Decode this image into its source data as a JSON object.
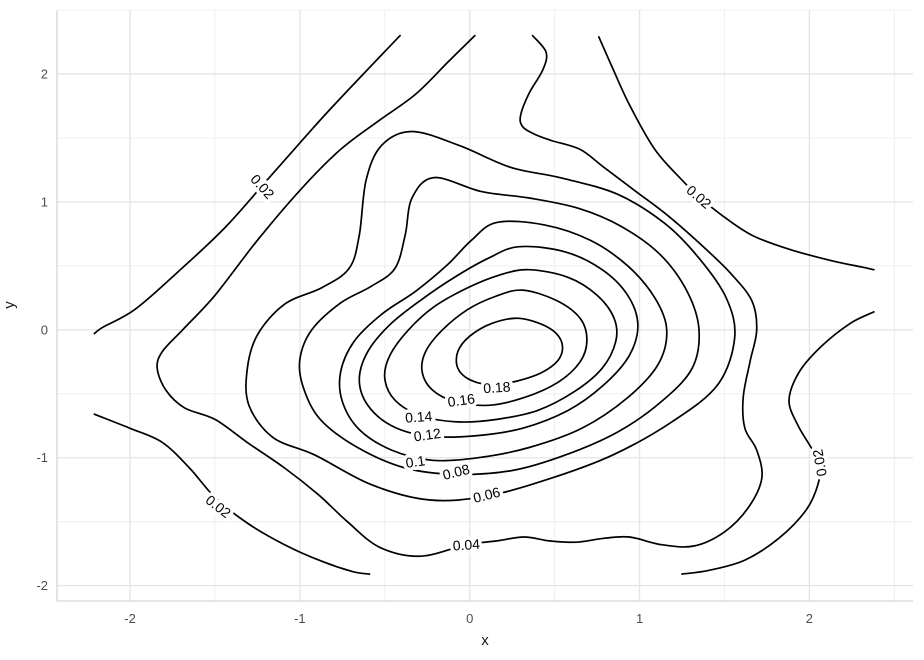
{
  "figure": {
    "background": "#ffffff"
  },
  "axes": {
    "x": {
      "title": "x",
      "tick_labels": [
        "-2",
        "-1",
        "0",
        "1",
        "2"
      ]
    },
    "y": {
      "title": "y",
      "tick_labels": [
        "-2",
        "-1",
        "0",
        "1",
        "2"
      ]
    }
  },
  "colors": {
    "contour_line": "#000000",
    "grid_major": "#e4e4e4",
    "grid_minor": "#f0f0f0",
    "axis_line": "#d6d6d6",
    "tick_label": "#4d4d4d",
    "axis_title": "#1a1a1a",
    "background": "#ffffff"
  },
  "chart_data": {
    "type": "contour",
    "title": "",
    "xlabel": "x",
    "ylabel": "y",
    "xlim": [
      -2.43,
      2.61
    ],
    "ylim": [
      -2.12,
      2.5
    ],
    "x_ticks": [
      -2,
      -1,
      0,
      1,
      2
    ],
    "y_ticks": [
      -2,
      -1,
      0,
      1,
      2
    ],
    "minor_ticks_x": [
      -1.5,
      -0.5,
      0.5,
      1.5,
      2.5
    ],
    "minor_ticks_y": [
      -1.5,
      -0.5,
      0.5,
      1.5,
      2.5
    ],
    "grid": "major+minor",
    "legend": "none",
    "levels": [
      0.02,
      0.04,
      0.06,
      0.08,
      0.1,
      0.12,
      0.14,
      0.16,
      0.18
    ],
    "peak_approx": [
      0.25,
      -0.17
    ],
    "segments": [
      {
        "level": 0.02,
        "closed": false,
        "pts": [
          [
            -0.41,
            2.3
          ],
          [
            -0.64,
            1.98
          ],
          [
            -0.88,
            1.64
          ],
          [
            -1.18,
            1.19
          ],
          [
            -1.44,
            0.8
          ],
          [
            -1.72,
            0.45
          ],
          [
            -1.97,
            0.16
          ],
          [
            -2.16,
            0.02
          ],
          [
            -2.21,
            -0.03
          ]
        ]
      },
      {
        "level": 0.02,
        "closed": false,
        "pts": [
          [
            -2.21,
            -0.66
          ],
          [
            -2.0,
            -0.77
          ],
          [
            -1.81,
            -0.88
          ],
          [
            -1.65,
            -1.08
          ],
          [
            -1.5,
            -1.31
          ],
          [
            -1.31,
            -1.51
          ],
          [
            -1.09,
            -1.68
          ],
          [
            -0.87,
            -1.81
          ],
          [
            -0.69,
            -1.89
          ],
          [
            -0.59,
            -1.91
          ]
        ]
      },
      {
        "level": 0.02,
        "closed": false,
        "pts": [
          [
            0.76,
            2.29
          ],
          [
            0.84,
            2.05
          ],
          [
            0.94,
            1.76
          ],
          [
            1.09,
            1.41
          ],
          [
            1.25,
            1.17
          ],
          [
            1.35,
            1.04
          ],
          [
            1.48,
            0.9
          ],
          [
            1.66,
            0.74
          ],
          [
            1.88,
            0.63
          ],
          [
            2.13,
            0.54
          ],
          [
            2.31,
            0.49
          ],
          [
            2.38,
            0.47
          ]
        ]
      },
      {
        "level": 0.02,
        "closed": false,
        "pts": [
          [
            2.38,
            0.14
          ],
          [
            2.24,
            0.05
          ],
          [
            2.07,
            -0.13
          ],
          [
            1.94,
            -0.33
          ],
          [
            1.88,
            -0.55
          ],
          [
            1.93,
            -0.74
          ],
          [
            2.01,
            -0.92
          ],
          [
            2.06,
            -1.04
          ],
          [
            2.05,
            -1.21
          ],
          [
            1.98,
            -1.41
          ],
          [
            1.82,
            -1.63
          ],
          [
            1.62,
            -1.8
          ],
          [
            1.41,
            -1.88
          ],
          [
            1.25,
            -1.91
          ]
        ]
      },
      {
        "level": 0.04,
        "closed": false,
        "pts": [
          [
            0.03,
            2.3
          ],
          [
            -0.13,
            2.09
          ],
          [
            -0.32,
            1.84
          ],
          [
            -0.54,
            1.63
          ],
          [
            -0.76,
            1.41
          ],
          [
            -1.0,
            1.09
          ],
          [
            -1.25,
            0.7
          ],
          [
            -1.5,
            0.27
          ],
          [
            -1.69,
            0.0
          ],
          [
            -1.81,
            -0.17
          ],
          [
            -1.84,
            -0.3
          ],
          [
            -1.79,
            -0.47
          ],
          [
            -1.68,
            -0.61
          ],
          [
            -1.5,
            -0.7
          ],
          [
            -1.31,
            -0.88
          ],
          [
            -1.09,
            -1.08
          ],
          [
            -0.89,
            -1.29
          ],
          [
            -0.72,
            -1.5
          ],
          [
            -0.53,
            -1.7
          ],
          [
            -0.29,
            -1.77
          ],
          [
            -0.02,
            -1.68
          ],
          [
            0.16,
            -1.65
          ],
          [
            0.32,
            -1.62
          ],
          [
            0.47,
            -1.65
          ],
          [
            0.63,
            -1.66
          ],
          [
            0.79,
            -1.63
          ],
          [
            0.94,
            -1.62
          ],
          [
            1.13,
            -1.68
          ],
          [
            1.32,
            -1.69
          ],
          [
            1.5,
            -1.58
          ],
          [
            1.64,
            -1.39
          ],
          [
            1.72,
            -1.16
          ],
          [
            1.69,
            -0.94
          ],
          [
            1.62,
            -0.77
          ],
          [
            1.61,
            -0.53
          ],
          [
            1.65,
            -0.25
          ],
          [
            1.69,
            0.0
          ],
          [
            1.66,
            0.23
          ],
          [
            1.53,
            0.45
          ],
          [
            1.35,
            0.68
          ],
          [
            1.16,
            0.9
          ],
          [
            0.97,
            1.09
          ],
          [
            0.79,
            1.27
          ],
          [
            0.65,
            1.41
          ],
          [
            0.48,
            1.48
          ],
          [
            0.38,
            1.53
          ],
          [
            0.31,
            1.59
          ],
          [
            0.3,
            1.68
          ],
          [
            0.35,
            1.85
          ],
          [
            0.43,
            2.03
          ],
          [
            0.45,
            2.17
          ],
          [
            0.37,
            2.3
          ]
        ]
      },
      {
        "level": 0.06,
        "closed": true,
        "pts": [
          [
            -0.34,
            1.55
          ],
          [
            -0.06,
            1.44
          ],
          [
            0.24,
            1.27
          ],
          [
            0.53,
            1.19
          ],
          [
            0.87,
            1.06
          ],
          [
            1.15,
            0.83
          ],
          [
            1.35,
            0.56
          ],
          [
            1.51,
            0.25
          ],
          [
            1.56,
            -0.06
          ],
          [
            1.46,
            -0.43
          ],
          [
            1.19,
            -0.72
          ],
          [
            0.84,
            -0.98
          ],
          [
            0.48,
            -1.16
          ],
          [
            0.1,
            -1.3
          ],
          [
            -0.24,
            -1.33
          ],
          [
            -0.58,
            -1.21
          ],
          [
            -0.91,
            -0.98
          ],
          [
            -1.16,
            -0.84
          ],
          [
            -1.3,
            -0.59
          ],
          [
            -1.31,
            -0.31
          ],
          [
            -1.25,
            -0.04
          ],
          [
            -1.09,
            0.2
          ],
          [
            -0.87,
            0.33
          ],
          [
            -0.71,
            0.48
          ],
          [
            -0.65,
            0.74
          ],
          [
            -0.61,
            1.17
          ],
          [
            -0.52,
            1.44
          ]
        ]
      },
      {
        "level": 0.08,
        "closed": true,
        "pts": [
          [
            -0.21,
            1.19
          ],
          [
            0.07,
            1.08
          ],
          [
            0.35,
            1.03
          ],
          [
            0.64,
            0.95
          ],
          [
            0.89,
            0.81
          ],
          [
            1.12,
            0.59
          ],
          [
            1.28,
            0.3
          ],
          [
            1.35,
            0.0
          ],
          [
            1.31,
            -0.3
          ],
          [
            1.13,
            -0.56
          ],
          [
            0.87,
            -0.8
          ],
          [
            0.56,
            -0.98
          ],
          [
            0.25,
            -1.1
          ],
          [
            -0.08,
            -1.13
          ],
          [
            -0.38,
            -1.08
          ],
          [
            -0.66,
            -0.92
          ],
          [
            -0.88,
            -0.7
          ],
          [
            -0.98,
            -0.45
          ],
          [
            -1.0,
            -0.23
          ],
          [
            -0.93,
            0.0
          ],
          [
            -0.76,
            0.21
          ],
          [
            -0.58,
            0.34
          ],
          [
            -0.44,
            0.48
          ],
          [
            -0.38,
            0.74
          ],
          [
            -0.34,
            1.03
          ]
        ]
      },
      {
        "level": 0.1,
        "closed": true,
        "pts": [
          [
            0.16,
            0.84
          ],
          [
            0.44,
            0.82
          ],
          [
            0.71,
            0.7
          ],
          [
            0.93,
            0.5
          ],
          [
            1.09,
            0.25
          ],
          [
            1.16,
            0.0
          ],
          [
            1.11,
            -0.27
          ],
          [
            0.93,
            -0.53
          ],
          [
            0.66,
            -0.77
          ],
          [
            0.35,
            -0.92
          ],
          [
            0.05,
            -1.0
          ],
          [
            -0.22,
            -1.02
          ],
          [
            -0.46,
            -0.94
          ],
          [
            -0.65,
            -0.78
          ],
          [
            -0.75,
            -0.56
          ],
          [
            -0.76,
            -0.33
          ],
          [
            -0.68,
            -0.09
          ],
          [
            -0.52,
            0.12
          ],
          [
            -0.32,
            0.3
          ],
          [
            -0.13,
            0.51
          ],
          [
            0.01,
            0.7
          ]
        ]
      },
      {
        "level": 0.12,
        "closed": true,
        "pts": [
          [
            0.29,
            0.65
          ],
          [
            0.56,
            0.61
          ],
          [
            0.78,
            0.47
          ],
          [
            0.93,
            0.27
          ],
          [
            0.99,
            0.04
          ],
          [
            0.94,
            -0.2
          ],
          [
            0.79,
            -0.43
          ],
          [
            0.58,
            -0.63
          ],
          [
            0.31,
            -0.77
          ],
          [
            0.02,
            -0.83
          ],
          [
            -0.25,
            -0.83
          ],
          [
            -0.46,
            -0.75
          ],
          [
            -0.6,
            -0.59
          ],
          [
            -0.65,
            -0.39
          ],
          [
            -0.6,
            -0.17
          ],
          [
            -0.47,
            0.04
          ],
          [
            -0.29,
            0.23
          ],
          [
            -0.09,
            0.41
          ],
          [
            0.11,
            0.56
          ]
        ]
      },
      {
        "level": 0.14,
        "closed": true,
        "pts": [
          [
            0.35,
            0.47
          ],
          [
            0.58,
            0.41
          ],
          [
            0.75,
            0.27
          ],
          [
            0.85,
            0.09
          ],
          [
            0.86,
            -0.09
          ],
          [
            0.78,
            -0.3
          ],
          [
            0.62,
            -0.48
          ],
          [
            0.4,
            -0.63
          ],
          [
            0.16,
            -0.7
          ],
          [
            -0.07,
            -0.72
          ],
          [
            -0.29,
            -0.67
          ],
          [
            -0.44,
            -0.55
          ],
          [
            -0.5,
            -0.38
          ],
          [
            -0.47,
            -0.2
          ],
          [
            -0.36,
            0.0
          ],
          [
            -0.21,
            0.18
          ],
          [
            -0.01,
            0.33
          ],
          [
            0.18,
            0.43
          ]
        ]
      },
      {
        "level": 0.16,
        "closed": true,
        "pts": [
          [
            0.31,
            0.31
          ],
          [
            0.51,
            0.23
          ],
          [
            0.65,
            0.09
          ],
          [
            0.69,
            -0.08
          ],
          [
            0.65,
            -0.25
          ],
          [
            0.52,
            -0.41
          ],
          [
            0.32,
            -0.53
          ],
          [
            0.11,
            -0.59
          ],
          [
            -0.09,
            -0.56
          ],
          [
            -0.22,
            -0.47
          ],
          [
            -0.28,
            -0.33
          ],
          [
            -0.26,
            -0.17
          ],
          [
            -0.16,
            0.0
          ],
          [
            -0.01,
            0.16
          ],
          [
            0.15,
            0.26
          ]
        ]
      },
      {
        "level": 0.18,
        "closed": true,
        "pts": [
          [
            0.29,
            0.09
          ],
          [
            0.46,
            0.02
          ],
          [
            0.54,
            -0.09
          ],
          [
            0.53,
            -0.22
          ],
          [
            0.43,
            -0.33
          ],
          [
            0.28,
            -0.4
          ],
          [
            0.13,
            -0.43
          ],
          [
            0.0,
            -0.39
          ],
          [
            -0.07,
            -0.3
          ],
          [
            -0.07,
            -0.17
          ],
          [
            0.0,
            -0.05
          ],
          [
            0.13,
            0.05
          ]
        ]
      }
    ],
    "contour_labels": [
      {
        "text": "0.02",
        "x": -1.22,
        "y": 1.12,
        "rot": 48
      },
      {
        "text": "0.02",
        "x": 1.35,
        "y": 1.04,
        "rot": 41
      },
      {
        "text": "0.02",
        "x": 2.06,
        "y": -1.04,
        "rot": -100
      },
      {
        "text": "0.02",
        "x": -1.48,
        "y": -1.38,
        "rot": 38
      },
      {
        "text": "0.04",
        "x": -0.02,
        "y": -1.68,
        "rot": -4
      },
      {
        "text": "0.06",
        "x": 0.1,
        "y": -1.29,
        "rot": -14
      },
      {
        "text": "0.08",
        "x": -0.08,
        "y": -1.11,
        "rot": -14
      },
      {
        "text": "0.1",
        "x": -0.32,
        "y": -1.03,
        "rot": -8
      },
      {
        "text": "0.12",
        "x": -0.25,
        "y": -0.82,
        "rot": -8
      },
      {
        "text": "0.14",
        "x": -0.3,
        "y": -0.68,
        "rot": -4
      },
      {
        "text": "0.16",
        "x": -0.05,
        "y": -0.55,
        "rot": -8
      },
      {
        "text": "0.18",
        "x": 0.16,
        "y": -0.45,
        "rot": -4
      }
    ]
  }
}
